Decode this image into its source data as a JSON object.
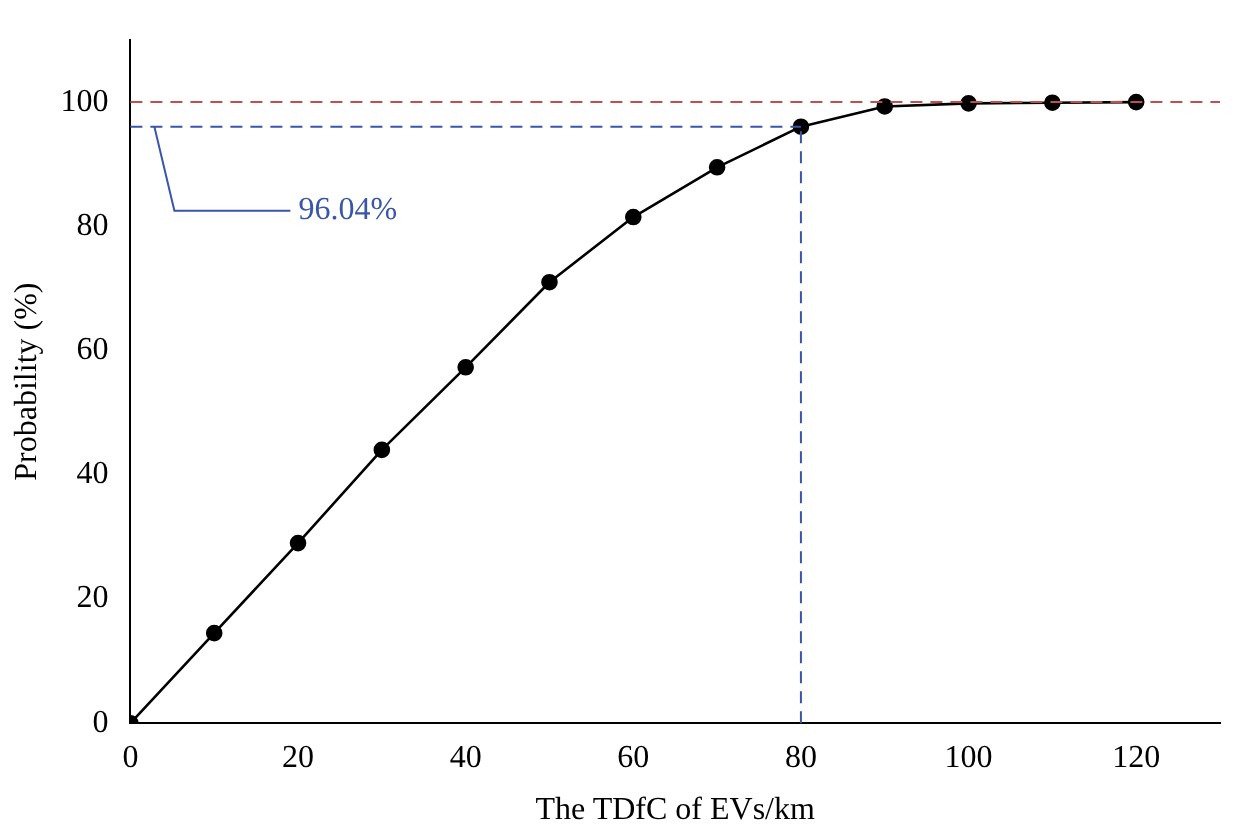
{
  "chart_data": {
    "type": "line",
    "xlabel": "The TDfC of EVs/km",
    "ylabel": "Probability (%)",
    "x": [
      0,
      10,
      20,
      30,
      40,
      50,
      60,
      70,
      80,
      90,
      100,
      110,
      120
    ],
    "series": [
      {
        "color": "#000000",
        "values": [
          0,
          14.5,
          29,
          44,
          57.3,
          71,
          81.5,
          89.5,
          96.04,
          99.3,
          99.8,
          99.9,
          100
        ]
      }
    ],
    "xlim": [
      0,
      130
    ],
    "xticks": [
      0,
      20,
      40,
      60,
      80,
      100,
      120
    ],
    "ylim": [
      0,
      110
    ],
    "yticks": [
      0,
      20,
      40,
      60,
      80,
      100
    ],
    "ref_lines": [
      {
        "axis": "y",
        "value": 100,
        "color": "#c0504d",
        "line_style": "dashed"
      },
      {
        "axis": "y",
        "value": 96.04,
        "color": "#3a56a8",
        "line_style": "dashed",
        "label": "96.04%"
      },
      {
        "axis": "x",
        "value": 80,
        "color": "#3a56a8",
        "line_style": "dashed"
      }
    ],
    "marker": "circle",
    "line_style": "solid",
    "grid": false,
    "legend": false
  }
}
